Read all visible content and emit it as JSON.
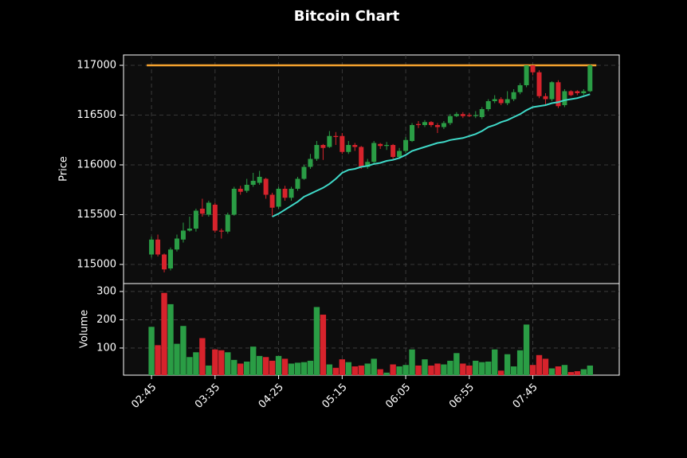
{
  "chart_data": [
    {
      "type": "candlestick",
      "title": "Bitcoin Chart",
      "ylabel": "Price",
      "xlim": [
        -4.4,
        73.6
      ],
      "ylim": [
        114808,
        117104
      ],
      "yticks": [
        115000,
        115500,
        116000,
        116500,
        117000
      ],
      "grid": true,
      "up_color": "#2a9d45",
      "down_color": "#d7232c",
      "open": [
        115100,
        115250,
        115100,
        114960,
        115150,
        115250,
        115340,
        115360,
        115560,
        115500,
        115600,
        115340,
        115330,
        115500,
        115760,
        115740,
        115800,
        115820,
        115860,
        115700,
        115580,
        115760,
        115670,
        115760,
        115860,
        115980,
        116060,
        116200,
        116180,
        116290,
        116290,
        116130,
        116200,
        116180,
        115980,
        116030,
        116210,
        116190,
        116200,
        116080,
        116140,
        116240,
        116410,
        116400,
        116430,
        116400,
        116380,
        116420,
        116490,
        116510,
        116500,
        116490,
        116480,
        116560,
        116640,
        116660,
        116620,
        116660,
        116730,
        116800,
        117000,
        116930,
        116690,
        116660,
        116830,
        116600,
        116740,
        116740,
        116720,
        116740
      ],
      "high": [
        115280,
        115300,
        115110,
        115170,
        115300,
        115420,
        115480,
        115560,
        115660,
        115640,
        115620,
        115360,
        115520,
        115780,
        115790,
        115860,
        115920,
        115940,
        115870,
        115720,
        115780,
        115790,
        115780,
        115880,
        116000,
        116110,
        116240,
        116210,
        116340,
        116330,
        116320,
        116240,
        116220,
        116190,
        116060,
        116240,
        116220,
        116230,
        116210,
        116170,
        116280,
        116420,
        116440,
        116450,
        116440,
        116420,
        116440,
        116510,
        116530,
        116530,
        116520,
        116540,
        116580,
        116660,
        116700,
        116680,
        116740,
        116760,
        116820,
        117000,
        117000,
        116950,
        116720,
        116840,
        116850,
        116760,
        116750,
        116750,
        116760,
        117010
      ],
      "low": [
        115070,
        115080,
        114920,
        114940,
        115130,
        115220,
        115330,
        115330,
        115480,
        115480,
        115320,
        115260,
        115310,
        115490,
        115700,
        115720,
        115780,
        115800,
        115660,
        115480,
        115560,
        115640,
        115640,
        115740,
        115850,
        115960,
        116040,
        116050,
        116170,
        116200,
        116110,
        116110,
        116140,
        115960,
        115960,
        116000,
        116160,
        116150,
        116060,
        116060,
        116120,
        116230,
        116370,
        116380,
        116380,
        116320,
        116360,
        116400,
        116480,
        116470,
        116480,
        116470,
        116460,
        116540,
        116620,
        116600,
        116600,
        116640,
        116710,
        116780,
        116900,
        116670,
        116600,
        116640,
        116570,
        116580,
        116690,
        116700,
        116700,
        116730
      ],
      "close": [
        115250,
        115100,
        114950,
        115150,
        115260,
        115340,
        115360,
        115540,
        115510,
        115620,
        115340,
        115330,
        115500,
        115760,
        115730,
        115800,
        115840,
        115880,
        115700,
        115570,
        115760,
        115670,
        115760,
        115860,
        115980,
        116060,
        116200,
        116170,
        116290,
        116280,
        116130,
        116200,
        116180,
        115980,
        116030,
        116220,
        116190,
        116200,
        116080,
        116140,
        116250,
        116400,
        116400,
        116430,
        116400,
        116380,
        116420,
        116490,
        116510,
        116490,
        116490,
        116500,
        116560,
        116640,
        116660,
        116620,
        116660,
        116730,
        116800,
        117000,
        116930,
        116690,
        116660,
        116830,
        116590,
        116740,
        116700,
        116720,
        116740,
        117000
      ],
      "ma": {
        "color": "#3fd9c8",
        "values": [
          null,
          null,
          null,
          null,
          null,
          null,
          null,
          null,
          null,
          null,
          null,
          null,
          null,
          null,
          null,
          null,
          null,
          null,
          null,
          115480,
          115510,
          115550,
          115590,
          115630,
          115680,
          115710,
          115740,
          115770,
          115810,
          115860,
          115920,
          115950,
          115960,
          115980,
          115990,
          116010,
          116020,
          116040,
          116050,
          116070,
          116100,
          116140,
          116160,
          116180,
          116200,
          116220,
          116230,
          116250,
          116260,
          116270,
          116290,
          116310,
          116340,
          116380,
          116400,
          116430,
          116450,
          116480,
          116510,
          116550,
          116580,
          116590,
          116600,
          116620,
          116630,
          116650,
          116660,
          116670,
          116690,
          116710
        ]
      },
      "hline": {
        "value": 117000,
        "color": "#f5a22e"
      }
    },
    {
      "type": "bar",
      "ylabel": "Volume",
      "ylim": [
        4,
        328
      ],
      "yticks": [
        100,
        200,
        300
      ],
      "grid": true,
      "xticks": [
        {
          "value": 0,
          "label": "02:45"
        },
        {
          "value": 10,
          "label": "03:35"
        },
        {
          "value": 20,
          "label": "04:25"
        },
        {
          "value": 30,
          "label": "05:15"
        },
        {
          "value": 40,
          "label": "06:05"
        },
        {
          "value": 50,
          "label": "06:55"
        },
        {
          "value": 60,
          "label": "07:45"
        }
      ],
      "values": [
        175,
        110,
        295,
        255,
        115,
        178,
        68,
        85,
        135,
        38,
        95,
        92,
        85,
        58,
        45,
        52,
        105,
        72,
        68,
        55,
        72,
        62,
        45,
        48,
        50,
        55,
        245,
        218,
        42,
        30,
        60,
        50,
        35,
        38,
        45,
        62,
        25,
        13,
        42,
        35,
        40,
        95,
        38,
        60,
        38,
        45,
        42,
        55,
        82,
        45,
        38,
        55,
        50,
        52,
        95,
        20,
        78,
        35,
        92,
        183,
        40,
        75,
        62,
        28,
        35,
        40,
        15,
        18,
        25,
        38
      ]
    }
  ]
}
